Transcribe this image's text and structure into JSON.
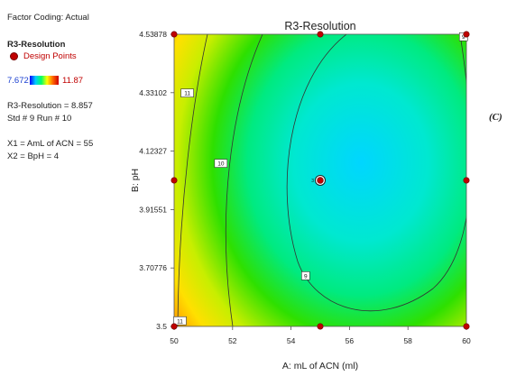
{
  "sidebar": {
    "factor_coding": "Factor Coding: Actual",
    "response_name": "R3-Resolution",
    "design_points_label": "Design Points",
    "range_min": "7.672",
    "range_max": "11.87",
    "point_value": "R3-Resolution = 8.857",
    "std_run": "Std # 9 Run # 10",
    "x1_setting": "X1 = AmL of ACN = 55",
    "x2_setting": "X2 = BpH = 4"
  },
  "panel_letter": "(C)",
  "chart_data": {
    "type": "contour",
    "title": "R3-Resolution",
    "xlabel": "A: mL of ACN (ml)",
    "ylabel": "B: pH",
    "xlim": [
      50,
      60
    ],
    "ylim": [
      3.5,
      4.53878
    ],
    "x_ticks": [
      "50",
      "52",
      "54",
      "56",
      "58",
      "60"
    ],
    "x_tick_values": [
      50,
      52,
      54,
      56,
      58,
      60
    ],
    "y_ticks": [
      "3.5",
      "3.70776",
      "3.91551",
      "4.12327",
      "4.33102",
      "4.53878"
    ],
    "y_tick_values": [
      3.5,
      3.70776,
      3.91551,
      4.12327,
      4.33102,
      4.53878
    ],
    "color_range": [
      7.672,
      11.87
    ],
    "contour_levels": [
      {
        "label": "11",
        "value": 11,
        "label_at": [
          50.45,
          4.33
        ]
      },
      {
        "label": "10",
        "value": 10,
        "label_at": [
          51.6,
          4.08
        ]
      },
      {
        "label": "9",
        "value": 9,
        "label_at": [
          54.5,
          3.68
        ]
      },
      {
        "label": "9",
        "value": 9,
        "label_at": [
          59.9,
          4.53
        ]
      },
      {
        "label": "11",
        "value": 11,
        "label_at": [
          50.2,
          3.52
        ]
      }
    ],
    "design_points": [
      {
        "x": 50,
        "y": 4.53878
      },
      {
        "x": 55,
        "y": 4.53878
      },
      {
        "x": 60,
        "y": 4.53878
      },
      {
        "x": 50,
        "y": 4.01939
      },
      {
        "x": 60,
        "y": 4.01939
      },
      {
        "x": 50,
        "y": 3.5
      },
      {
        "x": 55,
        "y": 3.5
      },
      {
        "x": 60,
        "y": 3.5
      }
    ],
    "center_point": {
      "x": 55,
      "y": 4.01939,
      "replicates": "3"
    },
    "grid": false
  }
}
